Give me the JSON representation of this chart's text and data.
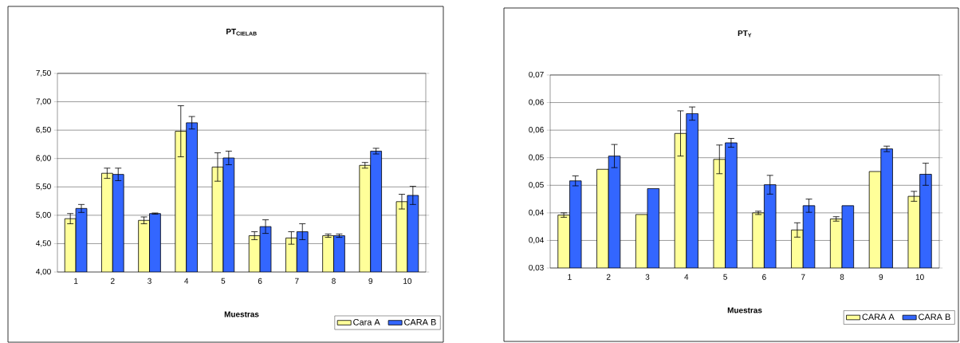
{
  "chart_data": [
    {
      "type": "bar",
      "title": "PT$_{CIELAB}$",
      "xlabel": "Muestras",
      "categories": [
        "1",
        "2",
        "3",
        "4",
        "5",
        "6",
        "7",
        "8",
        "9",
        "10"
      ],
      "series": [
        {
          "name": "Cara A",
          "color": "#ffff99",
          "values": [
            4.94,
            5.74,
            4.91,
            6.48,
            5.85,
            4.64,
            4.6,
            4.64,
            5.88,
            5.24
          ],
          "errors": [
            0.09,
            0.09,
            0.06,
            0.45,
            0.25,
            0.07,
            0.11,
            0.03,
            0.05,
            0.13
          ]
        },
        {
          "name": "CARA B",
          "color": "#3366ff",
          "values": [
            5.12,
            5.72,
            5.03,
            6.63,
            6.01,
            4.8,
            4.71,
            4.64,
            6.13,
            5.35
          ],
          "errors": [
            0.07,
            0.11,
            0.01,
            0.11,
            0.12,
            0.12,
            0.14,
            0.03,
            0.05,
            0.16
          ]
        }
      ],
      "ylim": [
        4.0,
        7.5
      ],
      "yticks": [
        {
          "value": 4.0,
          "label": "4,00"
        },
        {
          "value": 4.5,
          "label": "4,50"
        },
        {
          "value": 5.0,
          "label": "5,00"
        },
        {
          "value": 5.5,
          "label": "5,50"
        },
        {
          "value": 6.0,
          "label": "6,00"
        },
        {
          "value": 6.5,
          "label": "6,50"
        },
        {
          "value": 7.0,
          "label": "7,00"
        },
        {
          "value": 7.5,
          "label": "7,50"
        }
      ],
      "grid": "y",
      "legend": "bottom right"
    },
    {
      "type": "bar",
      "title": "PT$_{Y}$",
      "xlabel": "Muestras",
      "categories": [
        "1",
        "2",
        "3",
        "4",
        "5",
        "6",
        "7",
        "8",
        "9",
        "10"
      ],
      "series": [
        {
          "name": "CARA A",
          "color": "#ffff99",
          "values": [
            0.0396,
            0.0479,
            0.0397,
            0.0544,
            0.0497,
            0.04,
            0.0369,
            0.0389,
            0.0475,
            0.043
          ],
          "errors": [
            0.0004,
            null,
            null,
            0.0041,
            0.0026,
            0.0003,
            0.0013,
            0.0004,
            null,
            0.0009
          ]
        },
        {
          "name": "CARA B",
          "color": "#3366ff",
          "values": [
            0.0458,
            0.0503,
            0.0444,
            0.058,
            0.0527,
            0.0451,
            0.0413,
            0.0413,
            0.0516,
            0.047
          ],
          "errors": [
            0.0009,
            0.0021,
            null,
            0.0012,
            0.0008,
            0.0017,
            0.0012,
            null,
            0.0005,
            0.002
          ]
        }
      ],
      "ylim": [
        0.03,
        0.065
      ],
      "yticks": [
        {
          "value": 0.03,
          "label": "0,03"
        },
        {
          "value": 0.035,
          "label": "0,04"
        },
        {
          "value": 0.04,
          "label": "0,04"
        },
        {
          "value": 0.045,
          "label": "0,05"
        },
        {
          "value": 0.05,
          "label": "0,05"
        },
        {
          "value": 0.055,
          "label": "0,06"
        },
        {
          "value": 0.06,
          "label": "0,06"
        },
        {
          "value": 0.065,
          "label": "0,07"
        }
      ],
      "grid": "y",
      "legend": "bottom right"
    }
  ]
}
